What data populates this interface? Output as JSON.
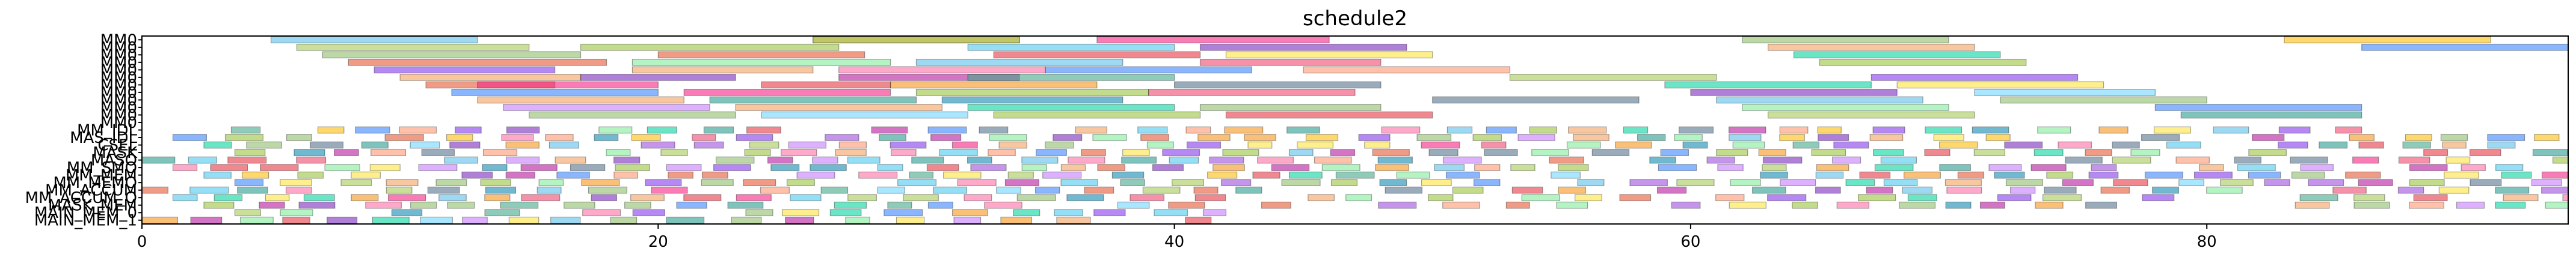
{
  "chart_data": {
    "type": "gantt",
    "title": "schedule2",
    "xlabel": "",
    "ylabel": "",
    "xlim": [
      0,
      94
    ],
    "x_ticks": [
      0,
      20,
      40,
      60,
      80
    ],
    "grid": false,
    "rows": [
      "MM0",
      "MM0",
      "MM0",
      "MM0",
      "MM0",
      "MM0",
      "MM0",
      "MM0",
      "MM0",
      "MM0",
      "MM0",
      "MM0",
      "MM_IDL",
      "MAS_IDL",
      "CSEL",
      "MASK",
      "MASO",
      "MM_SMO",
      "MM_MEM",
      "MM_MEMO",
      "MM_ACCUM",
      "MM_ACCUM_O",
      "MASK_MEM",
      "MAIN_MEM_0",
      "MAIN_MEM_1"
    ],
    "palette": [
      "#5bc0eb",
      "#f4a261",
      "#9bc53d",
      "#e55934",
      "#7b2cbf",
      "#2a9d8f",
      "#e63946",
      "#ffbe0b",
      "#3a86ff",
      "#8338ec",
      "#06d6a0",
      "#ef476f",
      "#118ab2",
      "#90be6d",
      "#f72585",
      "#4cc9f0",
      "#b5179e",
      "#43aa8b",
      "#f8961e",
      "#577590",
      "#a7c957",
      "#ff70a6",
      "#70d6ff",
      "#ff9770",
      "#c77dff",
      "#80ed99",
      "#fee440",
      "#9d4edd"
    ],
    "bars": [
      [
        0,
        5,
        13,
        0
      ],
      [
        0,
        26,
        34,
        1
      ],
      [
        0,
        26,
        34,
        2
      ],
      [
        0,
        37,
        46,
        14
      ],
      [
        0,
        62,
        70,
        13
      ],
      [
        0,
        83,
        91,
        7
      ],
      [
        1,
        6,
        15,
        20
      ],
      [
        1,
        17,
        27,
        2
      ],
      [
        1,
        32,
        40,
        15
      ],
      [
        1,
        41,
        49,
        4
      ],
      [
        1,
        63,
        71,
        1
      ],
      [
        1,
        86,
        94,
        8
      ],
      [
        2,
        7,
        17,
        13
      ],
      [
        2,
        20,
        28,
        3
      ],
      [
        2,
        33,
        41,
        6
      ],
      [
        2,
        42,
        50,
        26
      ],
      [
        2,
        64,
        72,
        10
      ],
      [
        3,
        8,
        18,
        3
      ],
      [
        3,
        19,
        29,
        25
      ],
      [
        3,
        30,
        38,
        0
      ],
      [
        3,
        41,
        48,
        11
      ],
      [
        3,
        65,
        73,
        2
      ],
      [
        4,
        9,
        16,
        9
      ],
      [
        4,
        19,
        26,
        1
      ],
      [
        4,
        27,
        35,
        21
      ],
      [
        4,
        35,
        43,
        8
      ],
      [
        4,
        45,
        53,
        23
      ],
      [
        5,
        10,
        17,
        1
      ],
      [
        5,
        17,
        23,
        4
      ],
      [
        5,
        27,
        34,
        16
      ],
      [
        5,
        32,
        40,
        17
      ],
      [
        5,
        53,
        61,
        20
      ],
      [
        5,
        67,
        75,
        9
      ],
      [
        6,
        11,
        16,
        3
      ],
      [
        6,
        13,
        20,
        14
      ],
      [
        6,
        24,
        29,
        6
      ],
      [
        6,
        29,
        37,
        18
      ],
      [
        6,
        40,
        48,
        19
      ],
      [
        6,
        59,
        67,
        10
      ],
      [
        6,
        68,
        76,
        26
      ],
      [
        7,
        12,
        20,
        8
      ],
      [
        7,
        21,
        29,
        14
      ],
      [
        7,
        30,
        39,
        2
      ],
      [
        7,
        39,
        47,
        11
      ],
      [
        7,
        60,
        68,
        4
      ],
      [
        7,
        71,
        78,
        22
      ],
      [
        8,
        13,
        21,
        1
      ],
      [
        8,
        22,
        30,
        5
      ],
      [
        8,
        31,
        38,
        12
      ],
      [
        8,
        50,
        58,
        19
      ],
      [
        8,
        61,
        69,
        0
      ],
      [
        8,
        72,
        80,
        13
      ],
      [
        9,
        14,
        22,
        24
      ],
      [
        9,
        23,
        31,
        1
      ],
      [
        9,
        32,
        40,
        10
      ],
      [
        9,
        41,
        48,
        13
      ],
      [
        9,
        62,
        70,
        25
      ],
      [
        9,
        78,
        86,
        8
      ],
      [
        10,
        15,
        23,
        13
      ],
      [
        10,
        24,
        32,
        22
      ],
      [
        10,
        33,
        41,
        2
      ],
      [
        10,
        42,
        50,
        6
      ],
      [
        10,
        63,
        71,
        20
      ],
      [
        10,
        79,
        86,
        5
      ]
    ],
    "strip_rows": [
      12,
      13,
      14,
      15,
      16,
      17,
      18,
      19,
      20,
      21,
      22,
      23,
      24
    ],
    "strip_end": 94,
    "strip_density": 0.55
  }
}
